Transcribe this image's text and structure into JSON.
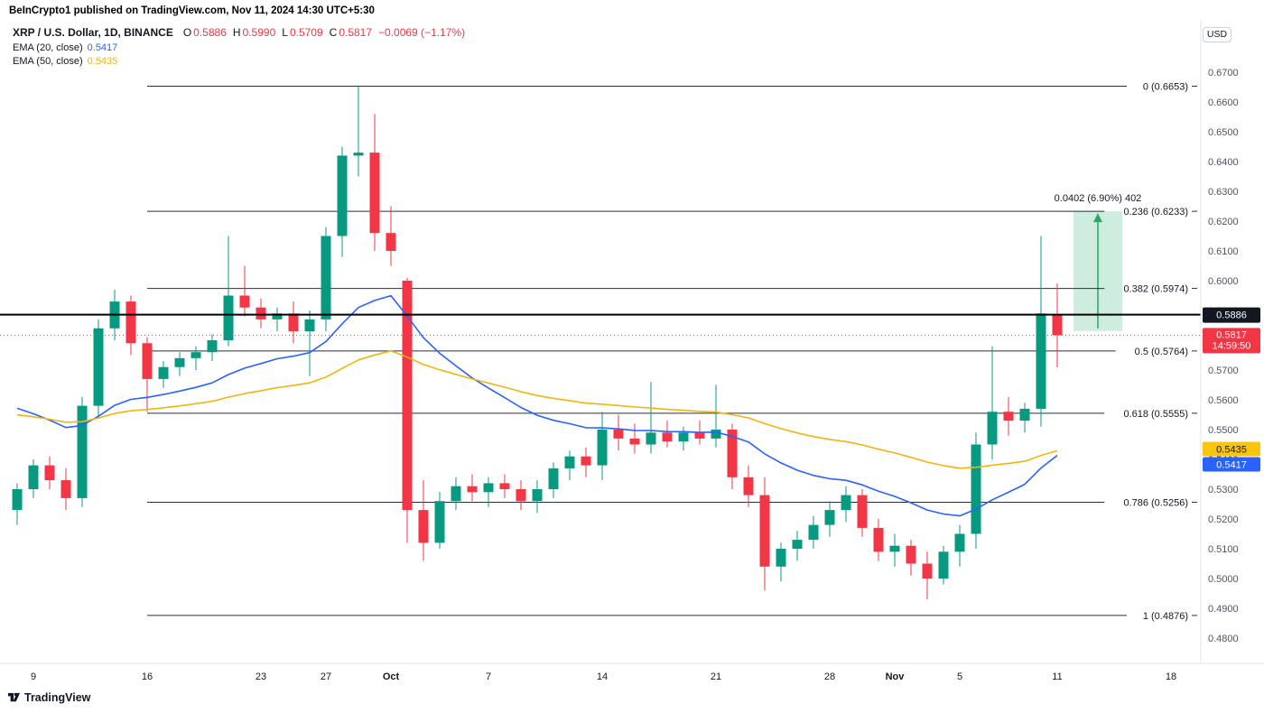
{
  "attribution": {
    "text": "BeInCrypto1 published on TradingView.com, Nov 11, 2024 14:30 UTC+5:30"
  },
  "header": {
    "symbol": "XRP / U.S. Dollar, 1D, BINANCE",
    "ohlc": {
      "open_label": "O",
      "open": "0.5886",
      "high_label": "H",
      "high": "0.5990",
      "low_label": "L",
      "low": "0.5709",
      "close_label": "C",
      "close": "0.5817",
      "change": "−0.0069 (−1.17%)"
    },
    "indicators": [
      {
        "label": "EMA (20, close)",
        "value": "0.5417"
      },
      {
        "label": "EMA (50, close)",
        "value": "0.5435"
      }
    ],
    "currency_button": "USD"
  },
  "footer": {
    "logo_text": "TradingView"
  },
  "chart_data": {
    "type": "candlestick",
    "symbol": "XRP/USD",
    "timeframe": "1D",
    "exchange": "BINANCE",
    "ylim": [
      0.48,
      0.67
    ],
    "colors": {
      "up": "#089981",
      "down": "#f23645",
      "hline": "#000000"
    },
    "y_ticks": [
      0.67,
      0.66,
      0.65,
      0.64,
      0.63,
      0.62,
      0.61,
      0.6,
      0.59,
      0.58,
      0.57,
      0.56,
      0.55,
      0.54,
      0.53,
      0.52,
      0.51,
      0.5,
      0.49,
      0.48
    ],
    "x_axis": [
      {
        "label": "9",
        "index": 1,
        "bold": false
      },
      {
        "label": "16",
        "index": 8,
        "bold": false
      },
      {
        "label": "23",
        "index": 15,
        "bold": false
      },
      {
        "label": "27",
        "index": 19,
        "bold": false
      },
      {
        "label": "Oct",
        "index": 23,
        "bold": true
      },
      {
        "label": "7",
        "index": 29,
        "bold": false
      },
      {
        "label": "14",
        "index": 36,
        "bold": false
      },
      {
        "label": "21",
        "index": 43,
        "bold": false
      },
      {
        "label": "28",
        "index": 50,
        "bold": false
      },
      {
        "label": "Nov",
        "index": 54,
        "bold": true
      },
      {
        "label": "5",
        "index": 58,
        "bold": false
      },
      {
        "label": "11",
        "index": 64,
        "bold": false
      },
      {
        "label": "18",
        "index": 71,
        "bold": false
      }
    ],
    "fib_levels": [
      {
        "label": "0 (0.6653)",
        "price": 0.6653
      },
      {
        "label": "0.236 (0.6233)",
        "price": 0.6233
      },
      {
        "label": "0.382 (0.5974)",
        "price": 0.5974
      },
      {
        "label": "0.5 (0.5764)",
        "price": 0.5764
      },
      {
        "label": "0.618 (0.5555)",
        "price": 0.5555
      },
      {
        "label": "0.786 (0.5256)",
        "price": 0.5256
      },
      {
        "label": "1 (0.4876)",
        "price": 0.4876
      }
    ],
    "hline": {
      "price": 0.5886,
      "label": "0.5886"
    },
    "last_price": {
      "price": 0.5817,
      "label": "0.5817",
      "countdown": "14:59:50"
    },
    "ema_axis_labels": [
      {
        "price": 0.5435,
        "label": "0.5435",
        "bg": "#fbc40f",
        "fg": "#131722"
      },
      {
        "price": 0.5417,
        "label": "0.5417",
        "bg": "#2962ff",
        "fg": "#ffffff"
      }
    ],
    "emas": [
      {
        "period": 20,
        "color": "#2962ff",
        "seed": 0.56
      },
      {
        "period": 50,
        "color": "#f2b50d",
        "seed": 0.556
      }
    ],
    "projection": {
      "label": "0.0402 (6.90%) 402",
      "from_price": 0.5831,
      "to_price": 0.6233,
      "x_start_index": 65,
      "x_end_index": 68,
      "color": "#22ab67"
    },
    "candles": [
      {
        "d": "Sep 8",
        "o": 0.523,
        "h": 0.532,
        "l": 0.518,
        "c": 0.53
      },
      {
        "d": "Sep 9",
        "o": 0.53,
        "h": 0.54,
        "l": 0.527,
        "c": 0.538
      },
      {
        "d": "Sep 10",
        "o": 0.538,
        "h": 0.541,
        "l": 0.53,
        "c": 0.533
      },
      {
        "d": "Sep 11",
        "o": 0.533,
        "h": 0.537,
        "l": 0.523,
        "c": 0.527
      },
      {
        "d": "Sep 12",
        "o": 0.527,
        "h": 0.561,
        "l": 0.524,
        "c": 0.558
      },
      {
        "d": "Sep 13",
        "o": 0.558,
        "h": 0.587,
        "l": 0.554,
        "c": 0.584
      },
      {
        "d": "Sep 14",
        "o": 0.584,
        "h": 0.597,
        "l": 0.58,
        "c": 0.593
      },
      {
        "d": "Sep 15",
        "o": 0.593,
        "h": 0.595,
        "l": 0.575,
        "c": 0.579
      },
      {
        "d": "Sep 16",
        "o": 0.579,
        "h": 0.581,
        "l": 0.556,
        "c": 0.567
      },
      {
        "d": "Sep 17",
        "o": 0.567,
        "h": 0.573,
        "l": 0.564,
        "c": 0.571
      },
      {
        "d": "Sep 18",
        "o": 0.571,
        "h": 0.576,
        "l": 0.568,
        "c": 0.574
      },
      {
        "d": "Sep 19",
        "o": 0.574,
        "h": 0.578,
        "l": 0.57,
        "c": 0.576
      },
      {
        "d": "Sep 20",
        "o": 0.576,
        "h": 0.582,
        "l": 0.573,
        "c": 0.58
      },
      {
        "d": "Sep 21",
        "o": 0.58,
        "h": 0.615,
        "l": 0.578,
        "c": 0.595
      },
      {
        "d": "Sep 22",
        "o": 0.595,
        "h": 0.605,
        "l": 0.588,
        "c": 0.591
      },
      {
        "d": "Sep 23",
        "o": 0.591,
        "h": 0.594,
        "l": 0.584,
        "c": 0.587
      },
      {
        "d": "Sep 24",
        "o": 0.587,
        "h": 0.591,
        "l": 0.583,
        "c": 0.589
      },
      {
        "d": "Sep 25",
        "o": 0.589,
        "h": 0.593,
        "l": 0.579,
        "c": 0.583
      },
      {
        "d": "Sep 26",
        "o": 0.583,
        "h": 0.59,
        "l": 0.568,
        "c": 0.587
      },
      {
        "d": "Sep 27",
        "o": 0.587,
        "h": 0.618,
        "l": 0.583,
        "c": 0.615
      },
      {
        "d": "Sep 28",
        "o": 0.615,
        "h": 0.645,
        "l": 0.608,
        "c": 0.642
      },
      {
        "d": "Sep 29",
        "o": 0.642,
        "h": 0.6653,
        "l": 0.635,
        "c": 0.643
      },
      {
        "d": "Sep 30",
        "o": 0.643,
        "h": 0.656,
        "l": 0.61,
        "c": 0.616
      },
      {
        "d": "Oct 1",
        "o": 0.616,
        "h": 0.625,
        "l": 0.605,
        "c": 0.61
      },
      {
        "d": "Oct 2",
        "o": 0.6,
        "h": 0.601,
        "l": 0.512,
        "c": 0.523
      },
      {
        "d": "Oct 3",
        "o": 0.523,
        "h": 0.533,
        "l": 0.506,
        "c": 0.512
      },
      {
        "d": "Oct 4",
        "o": 0.512,
        "h": 0.529,
        "l": 0.51,
        "c": 0.526
      },
      {
        "d": "Oct 5",
        "o": 0.526,
        "h": 0.534,
        "l": 0.523,
        "c": 0.531
      },
      {
        "d": "Oct 6",
        "o": 0.531,
        "h": 0.535,
        "l": 0.526,
        "c": 0.529
      },
      {
        "d": "Oct 7",
        "o": 0.529,
        "h": 0.534,
        "l": 0.524,
        "c": 0.532
      },
      {
        "d": "Oct 8",
        "o": 0.532,
        "h": 0.535,
        "l": 0.527,
        "c": 0.53
      },
      {
        "d": "Oct 9",
        "o": 0.53,
        "h": 0.533,
        "l": 0.523,
        "c": 0.526
      },
      {
        "d": "Oct 10",
        "o": 0.526,
        "h": 0.533,
        "l": 0.522,
        "c": 0.53
      },
      {
        "d": "Oct 11",
        "o": 0.53,
        "h": 0.539,
        "l": 0.527,
        "c": 0.537
      },
      {
        "d": "Oct 12",
        "o": 0.537,
        "h": 0.543,
        "l": 0.533,
        "c": 0.541
      },
      {
        "d": "Oct 13",
        "o": 0.541,
        "h": 0.544,
        "l": 0.534,
        "c": 0.538
      },
      {
        "d": "Oct 14",
        "o": 0.538,
        "h": 0.556,
        "l": 0.533,
        "c": 0.55
      },
      {
        "d": "Oct 15",
        "o": 0.55,
        "h": 0.555,
        "l": 0.543,
        "c": 0.547
      },
      {
        "d": "Oct 16",
        "o": 0.547,
        "h": 0.552,
        "l": 0.542,
        "c": 0.545
      },
      {
        "d": "Oct 17",
        "o": 0.545,
        "h": 0.566,
        "l": 0.542,
        "c": 0.549
      },
      {
        "d": "Oct 18",
        "o": 0.549,
        "h": 0.553,
        "l": 0.544,
        "c": 0.546
      },
      {
        "d": "Oct 19",
        "o": 0.546,
        "h": 0.551,
        "l": 0.543,
        "c": 0.549
      },
      {
        "d": "Oct 20",
        "o": 0.549,
        "h": 0.553,
        "l": 0.545,
        "c": 0.547
      },
      {
        "d": "Oct 21",
        "o": 0.547,
        "h": 0.565,
        "l": 0.544,
        "c": 0.55
      },
      {
        "d": "Oct 22",
        "o": 0.55,
        "h": 0.552,
        "l": 0.53,
        "c": 0.534
      },
      {
        "d": "Oct 23",
        "o": 0.534,
        "h": 0.538,
        "l": 0.524,
        "c": 0.528
      },
      {
        "d": "Oct 24",
        "o": 0.528,
        "h": 0.534,
        "l": 0.496,
        "c": 0.504
      },
      {
        "d": "Oct 25",
        "o": 0.504,
        "h": 0.512,
        "l": 0.499,
        "c": 0.51
      },
      {
        "d": "Oct 26",
        "o": 0.51,
        "h": 0.516,
        "l": 0.506,
        "c": 0.513
      },
      {
        "d": "Oct 27",
        "o": 0.513,
        "h": 0.521,
        "l": 0.51,
        "c": 0.518
      },
      {
        "d": "Oct 28",
        "o": 0.518,
        "h": 0.526,
        "l": 0.514,
        "c": 0.523
      },
      {
        "d": "Oct 29",
        "o": 0.523,
        "h": 0.531,
        "l": 0.519,
        "c": 0.528
      },
      {
        "d": "Oct 30",
        "o": 0.528,
        "h": 0.53,
        "l": 0.514,
        "c": 0.517
      },
      {
        "d": "Oct 31",
        "o": 0.517,
        "h": 0.52,
        "l": 0.506,
        "c": 0.509
      },
      {
        "d": "Nov 1",
        "o": 0.509,
        "h": 0.515,
        "l": 0.504,
        "c": 0.511
      },
      {
        "d": "Nov 2",
        "o": 0.511,
        "h": 0.513,
        "l": 0.501,
        "c": 0.505
      },
      {
        "d": "Nov 3",
        "o": 0.505,
        "h": 0.509,
        "l": 0.493,
        "c": 0.5
      },
      {
        "d": "Nov 4",
        "o": 0.5,
        "h": 0.511,
        "l": 0.498,
        "c": 0.509
      },
      {
        "d": "Nov 5",
        "o": 0.509,
        "h": 0.518,
        "l": 0.504,
        "c": 0.515
      },
      {
        "d": "Nov 6",
        "o": 0.515,
        "h": 0.549,
        "l": 0.51,
        "c": 0.545
      },
      {
        "d": "Nov 7",
        "o": 0.545,
        "h": 0.578,
        "l": 0.54,
        "c": 0.556
      },
      {
        "d": "Nov 8",
        "o": 0.556,
        "h": 0.561,
        "l": 0.548,
        "c": 0.553
      },
      {
        "d": "Nov 9",
        "o": 0.553,
        "h": 0.559,
        "l": 0.549,
        "c": 0.557
      },
      {
        "d": "Nov 10",
        "o": 0.557,
        "h": 0.615,
        "l": 0.551,
        "c": 0.589
      },
      {
        "d": "Nov 11",
        "o": 0.5886,
        "h": 0.599,
        "l": 0.5709,
        "c": 0.5817
      }
    ]
  }
}
